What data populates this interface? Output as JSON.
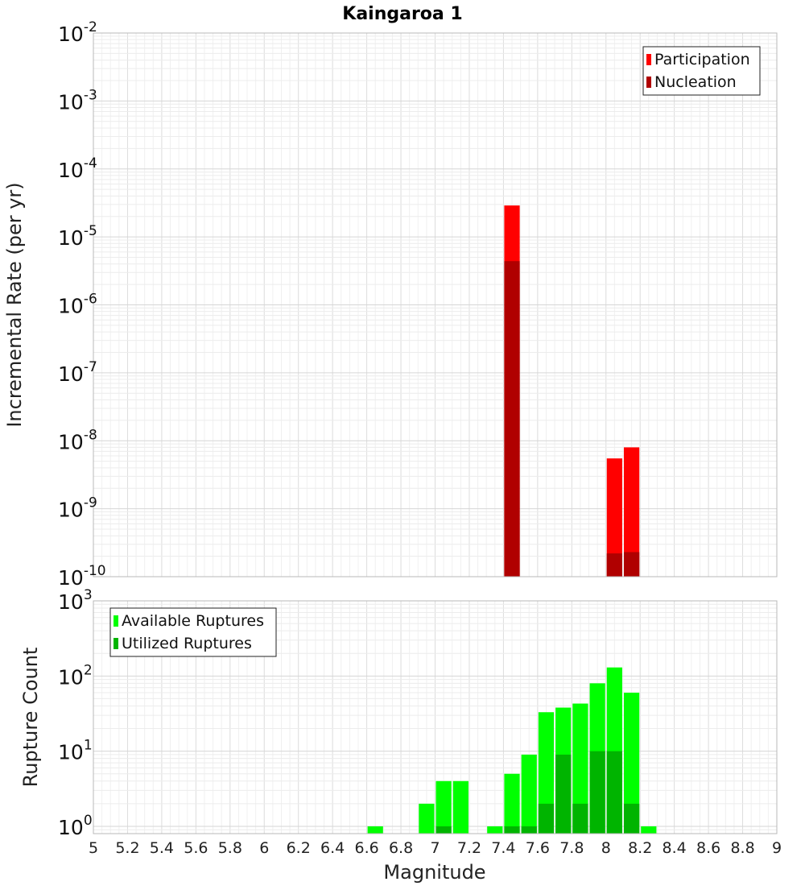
{
  "chart_data": [
    {
      "type": "bar",
      "title": "Kaingaroa 1",
      "ylabel": "Incremental Rate (per yr)",
      "xlabel": "",
      "y_scale": "log",
      "ylim": [
        1e-10,
        0.01
      ],
      "y_tick_labels": [
        {
          "base": "10",
          "exp": "-2"
        },
        {
          "base": "10",
          "exp": "-3"
        },
        {
          "base": "10",
          "exp": "-4"
        },
        {
          "base": "10",
          "exp": "-5"
        },
        {
          "base": "10",
          "exp": "-6"
        },
        {
          "base": "10",
          "exp": "-7"
        },
        {
          "base": "10",
          "exp": "-8"
        },
        {
          "base": "10",
          "exp": "-9"
        },
        {
          "base": "10",
          "exp": "-10"
        }
      ],
      "grid": true,
      "legend_position": "top-right",
      "series": [
        {
          "name": "Participation",
          "color": "#ff0000",
          "x": [
            7.45,
            8.05,
            8.15
          ],
          "values": [
            2.9e-05,
            5.5e-09,
            8e-09
          ]
        },
        {
          "name": "Nucleation",
          "color": "#b00000",
          "x": [
            7.45,
            8.05,
            8.15
          ],
          "values": [
            4.4e-06,
            2.2e-10,
            2.3e-10
          ]
        }
      ]
    },
    {
      "type": "bar",
      "title": "",
      "ylabel": "Rupture Count",
      "xlabel": "Magnitude",
      "y_scale": "log",
      "ylim": [
        0.8,
        1000
      ],
      "xlim": [
        5,
        9
      ],
      "x_tick_labels": [
        "5",
        "5.2",
        "5.4",
        "5.6",
        "5.8",
        "6",
        "6.2",
        "6.4",
        "6.6",
        "6.8",
        "7",
        "7.2",
        "7.4",
        "7.6",
        "7.8",
        "8",
        "8.2",
        "8.4",
        "8.6",
        "8.8",
        "9"
      ],
      "y_tick_labels": [
        {
          "base": "10",
          "exp": "3"
        },
        {
          "base": "10",
          "exp": "2"
        },
        {
          "base": "10",
          "exp": "1"
        },
        {
          "base": "10",
          "exp": "0"
        }
      ],
      "grid": true,
      "legend_position": "top-left",
      "series": [
        {
          "name": "Available Ruptures",
          "color": "#00ff00",
          "x": [
            6.65,
            6.95,
            7.05,
            7.15,
            7.35,
            7.45,
            7.55,
            7.65,
            7.75,
            7.85,
            7.95,
            8.05,
            8.15,
            8.25
          ],
          "values": [
            1,
            2,
            4,
            4,
            1,
            5,
            9,
            33,
            38,
            43,
            80,
            130,
            60,
            1
          ]
        },
        {
          "name": "Utilized Ruptures",
          "color": "#00b400",
          "x": [
            7.05,
            7.45,
            7.55,
            7.65,
            7.75,
            7.85,
            7.95,
            8.05,
            8.15
          ],
          "values": [
            1,
            1,
            1,
            2,
            9,
            2,
            10,
            10,
            2
          ]
        }
      ]
    }
  ]
}
